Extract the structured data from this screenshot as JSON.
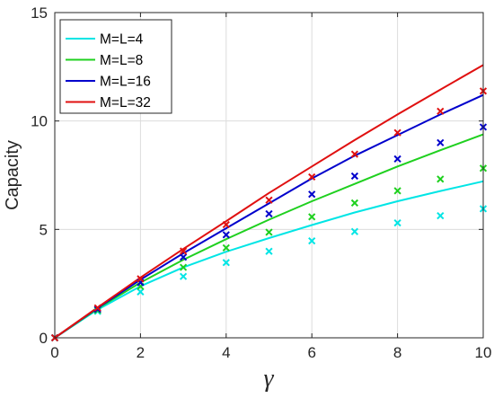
{
  "chart_data": {
    "type": "line",
    "title": "",
    "xlabel": "γ",
    "ylabel": "Capacity",
    "xlim": [
      0,
      10
    ],
    "ylim": [
      0,
      15
    ],
    "xticks": [
      "0",
      "2",
      "4",
      "6",
      "8",
      "10"
    ],
    "yticks": [
      "0",
      "5",
      "10",
      "15"
    ],
    "grid": true,
    "legend_position": "top-left",
    "x": [
      0,
      1,
      2,
      3,
      4,
      5,
      6,
      7,
      8,
      9,
      10
    ],
    "series": [
      {
        "name": "M=L=4",
        "color": "#00e5e5",
        "line": [
          0,
          1.3,
          2.38,
          3.25,
          3.97,
          4.6,
          5.2,
          5.78,
          6.3,
          6.77,
          7.22
        ],
        "markers": [
          0,
          1.22,
          2.12,
          2.83,
          3.47,
          3.99,
          4.47,
          4.9,
          5.3,
          5.63,
          5.95
        ]
      },
      {
        "name": "M=L=8",
        "color": "#1fd01f",
        "line": [
          0,
          1.35,
          2.55,
          3.6,
          4.55,
          5.45,
          6.3,
          7.1,
          7.9,
          8.65,
          9.38
        ],
        "markers": [
          0,
          1.27,
          2.37,
          3.25,
          4.15,
          4.87,
          5.58,
          6.22,
          6.78,
          7.32,
          7.82
        ]
      },
      {
        "name": "M=L=16",
        "color": "#0000cc",
        "line": [
          0,
          1.38,
          2.68,
          3.9,
          5.05,
          6.2,
          7.35,
          8.4,
          9.35,
          10.3,
          11.2
        ],
        "markers": [
          0,
          1.32,
          2.55,
          3.72,
          4.75,
          5.72,
          6.62,
          7.46,
          8.25,
          9.0,
          9.72
        ]
      },
      {
        "name": "M=L=32",
        "color": "#e01010",
        "line": [
          0,
          1.4,
          2.78,
          4.1,
          5.38,
          6.68,
          7.9,
          9.12,
          10.3,
          11.45,
          12.58
        ],
        "markers": [
          0,
          1.38,
          2.72,
          4.0,
          5.22,
          6.35,
          7.42,
          8.47,
          9.46,
          10.45,
          11.38
        ]
      }
    ]
  }
}
